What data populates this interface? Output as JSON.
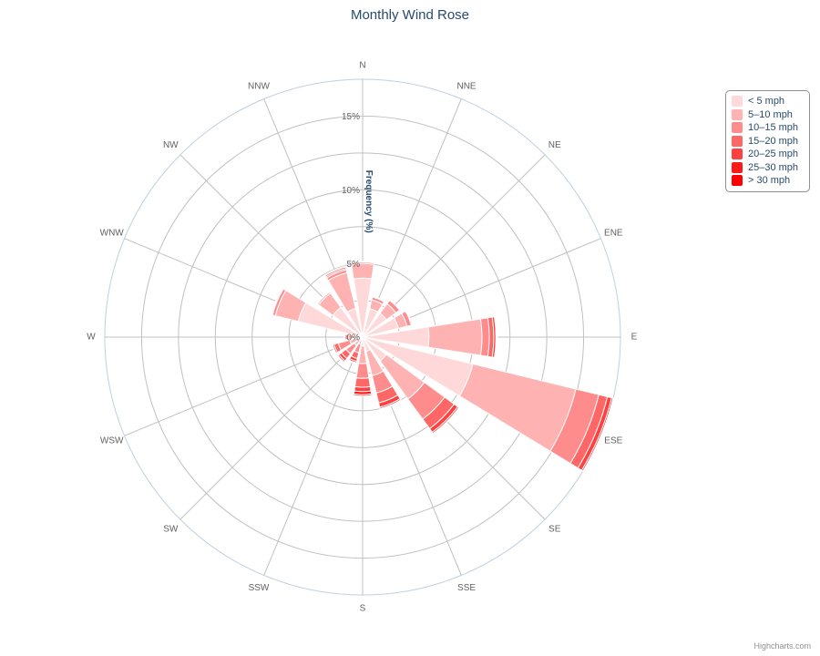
{
  "chart_data": {
    "type": "windrose",
    "title": "Monthly Wind Rose",
    "yaxis_title": "Frequency (%)",
    "directions": [
      "N",
      "NNE",
      "NE",
      "ENE",
      "E",
      "ESE",
      "SE",
      "SSE",
      "S",
      "SSW",
      "SW",
      "WSW",
      "W",
      "WNW",
      "NW",
      "NNW"
    ],
    "y_ticks": [
      "0%",
      "5%",
      "10%",
      "15%"
    ],
    "y_tick_values": [
      0,
      5,
      10,
      15
    ],
    "ylim": [
      0,
      17.5
    ],
    "stacked": true,
    "series": [
      {
        "name": "< 5 mph",
        "color": "#ffd9d9",
        "values": [
          4.0,
          2.0,
          2.0,
          2.5,
          4.5,
          7.7,
          2.0,
          1.0,
          0.6,
          0.2,
          0.2,
          0.3,
          0.5,
          4.5,
          2.5,
          2.0
        ]
      },
      {
        "name": "5-10 mph",
        "color": "#ffb2b2",
        "values": [
          1.0,
          0.6,
          0.8,
          0.6,
          3.6,
          7.2,
          3.2,
          1.7,
          1.2,
          0.3,
          0.5,
          0.6,
          0.5,
          1.6,
          1.2,
          2.5
        ]
      },
      {
        "name": "10-15 mph",
        "color": "#ff8c8c",
        "values": [
          0.1,
          0.2,
          0.3,
          0.3,
          0.5,
          1.6,
          1.7,
          1.2,
          1.0,
          0.6,
          0.7,
          0.8,
          0.2,
          0.2,
          0.1,
          0.2
        ]
      },
      {
        "name": "15-20 mph",
        "color": "#ff6666",
        "values": [
          0.05,
          0.05,
          0.05,
          0.05,
          0.3,
          0.6,
          0.8,
          0.7,
          0.6,
          0.4,
          0.4,
          0.3,
          0.05,
          0.05,
          0.05,
          0.1
        ]
      },
      {
        "name": "20-25 mph",
        "color": "#ff4040",
        "values": [
          0.0,
          0.0,
          0.0,
          0.0,
          0.15,
          0.3,
          0.3,
          0.3,
          0.3,
          0.2,
          0.2,
          0.1,
          0.0,
          0.05,
          0.0,
          0.1
        ]
      },
      {
        "name": "25-30 mph",
        "color": "#ff1a1a",
        "values": [
          0.0,
          0.0,
          0.0,
          0.0,
          0.05,
          0.1,
          0.1,
          0.1,
          0.2,
          0.1,
          0.1,
          0.05,
          0.0,
          0.0,
          0.0,
          0.05
        ]
      },
      {
        "name": "> 30 mph",
        "color": "#ff0000",
        "values": [
          0.0,
          0.0,
          0.0,
          0.0,
          0.05,
          0.05,
          0.05,
          0.05,
          0.1,
          0.05,
          0.05,
          0.0,
          0.0,
          0.0,
          0.0,
          0.0
        ]
      }
    ],
    "legend_position": "top-right"
  },
  "legend_labels": [
    "< 5 mph",
    "5–10 mph",
    "10–15 mph",
    "15–20 mph",
    "20–25 mph",
    "25–30 mph",
    "> 30 mph"
  ],
  "credits": "Highcharts.com",
  "colors": {
    "title": "#274b6d",
    "grid": "#c0c0c0",
    "outer_ring": "#c0d0e0",
    "label": "#606060"
  }
}
